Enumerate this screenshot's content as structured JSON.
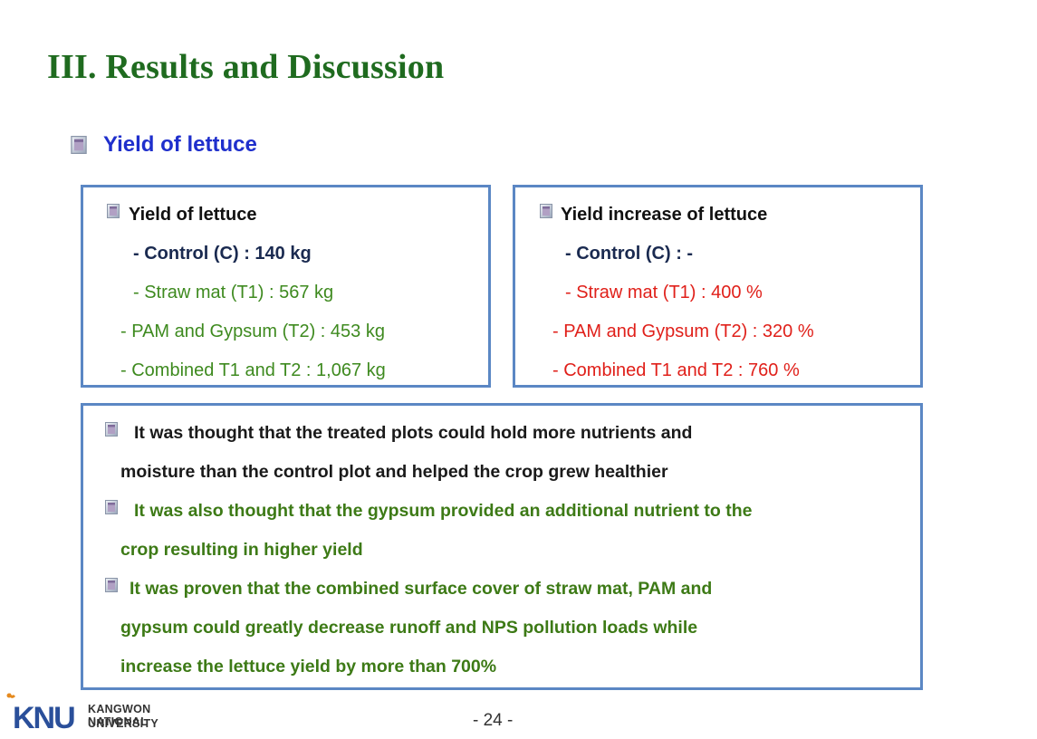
{
  "title": "III. Results and Discussion",
  "section_heading": "Yield of lettuce",
  "yield_box": {
    "heading": "Yield of lettuce",
    "items": [
      "-  Control (C) : 140 kg",
      "- Straw mat (T1) : 567 kg",
      "- PAM and Gypsum (T2) : 453 kg",
      "- Combined T1 and T2 : 1,067 kg"
    ]
  },
  "increase_box": {
    "heading": "Yield increase of lettuce",
    "items": [
      "-  Control (C) : -",
      "- Straw mat (T1) : 400 %",
      "- PAM and Gypsum (T2) : 320 %",
      "- Combined T1 and T2 : 760 %"
    ]
  },
  "notes": [
    {
      "line1": "It was thought that the treated plots could hold more nutrients and",
      "line2": "moisture than the control plot and helped the crop grew healthier"
    },
    {
      "line1": "It was also thought that the gypsum provided an additional nutrient to the",
      "line2": "crop resulting in higher yield"
    },
    {
      "line1": "It was proven that the combined surface cover of straw mat, PAM and",
      "line2": "gypsum could greatly decrease runoff and NPS pollution loads while",
      "line3": "increase the lettuce yield by more than 700%"
    }
  ],
  "logo": {
    "mark": "KNU",
    "line1": "KANGWON NATIONAL",
    "line2": "UNIVERSITY"
  },
  "page_number": "- 24 -",
  "colors": {
    "title": "#1f6b1f",
    "section": "#1f2fcc",
    "box_border": "#5b87c4",
    "red": "#e0201a",
    "green": "#3e8a1f",
    "navy": "#1a2a50"
  }
}
